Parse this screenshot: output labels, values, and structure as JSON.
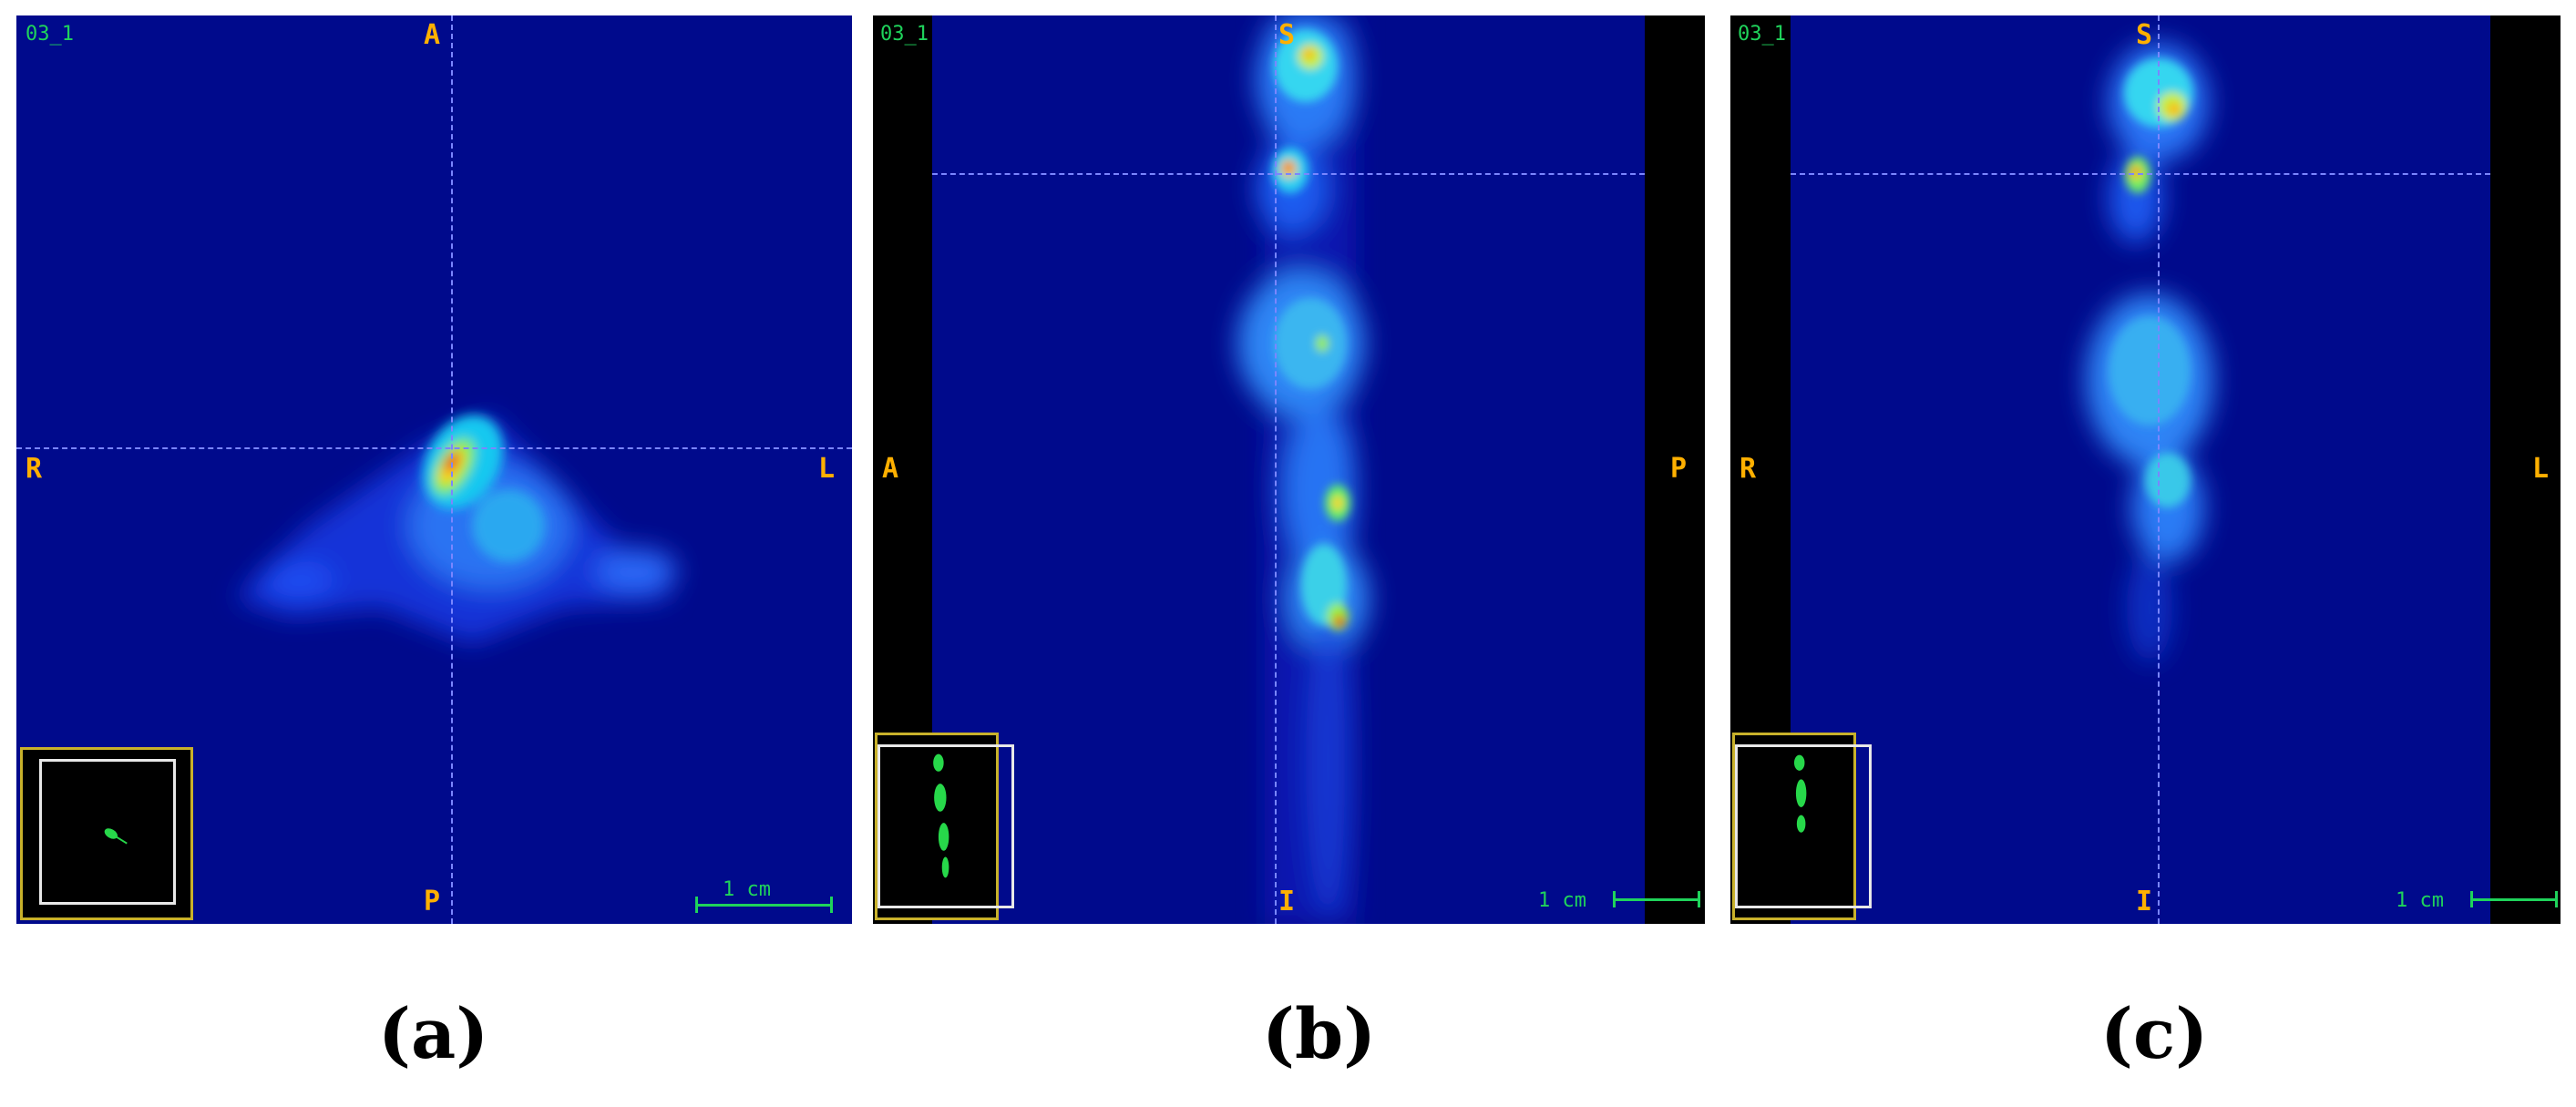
{
  "panels": [
    {
      "id": "a",
      "series": "03_1",
      "orientation": {
        "top": "A",
        "bottom": "P",
        "left": "R",
        "right": "L"
      },
      "scale_label": "1 cm",
      "caption": "(a)"
    },
    {
      "id": "b",
      "series": "03_1",
      "orientation": {
        "top": "S",
        "bottom": "I",
        "left": "A",
        "right": "P"
      },
      "scale_label": "1 cm",
      "caption": "(b)"
    },
    {
      "id": "c",
      "series": "03_1",
      "orientation": {
        "top": "S",
        "bottom": "I",
        "left": "R",
        "right": "L"
      },
      "scale_label": "1 cm",
      "caption": "(c)"
    }
  ],
  "colors": {
    "background": "#000a8c",
    "crosshair": "#7a86ff",
    "orientation_text": "#ffb000",
    "overlay_text": "#1fd35b",
    "inset_border": "#c8b12b",
    "inset_frame": "#e8e8e8"
  },
  "icons": [
    "scale-bar-icon",
    "locator-inset-icon"
  ]
}
